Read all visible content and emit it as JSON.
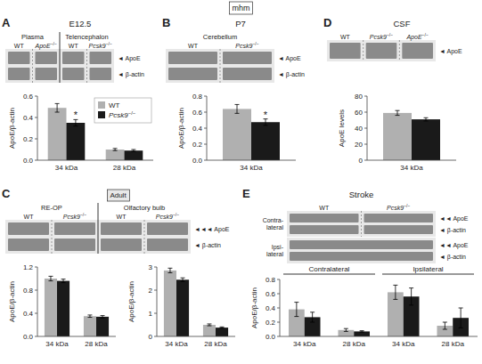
{
  "title": "mhm",
  "chart_data": [
    {
      "type": "bar",
      "panel": "A",
      "title": "E12.5",
      "y_label": "ApoE/β-actin",
      "categories": [
        "34 kDa",
        "28 kDa"
      ],
      "series": [
        {
          "name": "WT",
          "color": "#b0b0b0",
          "values": [
            0.49,
            0.1
          ],
          "errors": [
            0.04,
            0.01
          ]
        },
        {
          "name": "Pcsk9−/−",
          "color": "#1a1a1a",
          "values": [
            0.35,
            0.09
          ],
          "errors": [
            0.03,
            0.01
          ],
          "significance": [
            "*",
            null
          ]
        }
      ],
      "ylim": [
        0,
        0.6
      ],
      "yticks": [
        {
          "value": 0,
          "label": "0.0"
        },
        0.2,
        0.4,
        0.6
      ],
      "legend": "upper right",
      "blots": [
        {
          "sections": [
            {
              "title": "Plasma",
              "groups": [
                "WT",
                "ApoE−/−"
              ]
            },
            {
              "title": "Telencephalon",
              "groups": [
                "WT",
                "Pcsk9−/−"
              ]
            }
          ],
          "bands": [
            "◄ ApoE",
            "◄ β-actin"
          ]
        }
      ]
    },
    {
      "type": "bar",
      "panel": "B",
      "title": "P7",
      "y_label": "ApoE/β-actin",
      "categories": [
        "34 kDa"
      ],
      "series": [
        {
          "color": "#b0b0b0",
          "values": [
            0.64
          ],
          "errors": [
            0.055
          ]
        },
        {
          "color": "#1a1a1a",
          "values": [
            0.475
          ],
          "errors": [
            0.04
          ],
          "significance": [
            "*"
          ]
        }
      ],
      "ylim": [
        0,
        0.8
      ],
      "yticks": [
        {
          "value": 0,
          "label": "0.0"
        },
        0.2,
        0.4,
        0.6,
        0.8
      ],
      "blots": [
        {
          "sections": [
            {
              "title": "Cerebellum",
              "groups": [
                "WT",
                "Pcsk9−/−"
              ]
            }
          ],
          "bands": [
            "◄ ApoE",
            "◄ β-actin"
          ]
        }
      ]
    },
    {
      "type": "bar",
      "panel": "C",
      "subtitle": "Adult",
      "y_label": "ApoE/β-actin",
      "categories": [
        "34 kDa",
        "28 kDa"
      ],
      "series": [
        {
          "color": "#b0b0b0",
          "values": [
            1.0,
            0.35
          ],
          "errors": [
            0.04,
            0.02
          ]
        },
        {
          "color": "#1a1a1a",
          "values": [
            0.96,
            0.34
          ],
          "errors": [
            0.03,
            0.02
          ]
        }
      ],
      "ylim": [
        0,
        1.2
      ],
      "yticks": [
        {
          "value": 0,
          "label": "0.0"
        },
        0.4,
        0.8,
        1.2
      ],
      "blots": [
        {
          "sections": [
            {
              "title": "RE-OP",
              "groups": [
                "WT",
                "Pcsk9−/−"
              ]
            },
            {
              "title": "Olfactory bulb",
              "groups": [
                "WT",
                "Pcsk9−/−"
              ]
            }
          ],
          "bands": [
            "◄◄◄ ApoE",
            "◄ β-actin"
          ]
        }
      ]
    },
    {
      "type": "bar",
      "y_label": "ApoE/β-actin",
      "categories": [
        "34 kDa",
        "28 kDa"
      ],
      "series": [
        {
          "color": "#b0b0b0",
          "values": [
            2.85,
            0.5
          ],
          "errors": [
            0.1,
            0.04
          ]
        },
        {
          "color": "#1a1a1a",
          "values": [
            2.45,
            0.38
          ],
          "errors": [
            0.08,
            0.03
          ]
        }
      ],
      "ylim": [
        0,
        3
      ],
      "yticks": [
        0,
        1,
        2,
        3
      ]
    },
    {
      "type": "bar",
      "panel": "D",
      "title": "CSF",
      "y_label": "ApoE levels",
      "categories": [
        "34 kDa"
      ],
      "series": [
        {
          "color": "#b0b0b0",
          "values": [
            59
          ],
          "errors": [
            3
          ]
        },
        {
          "color": "#1a1a1a",
          "values": [
            51
          ],
          "errors": [
            2
          ]
        }
      ],
      "ylim": [
        0,
        80
      ],
      "yticks": [
        0,
        20,
        40,
        60,
        80
      ],
      "blots": [
        {
          "sections": [
            {
              "groups": [
                "WT",
                "Pcsk9−/−",
                "ApoE−/−"
              ]
            }
          ],
          "bands": [
            "◄ ApoE"
          ]
        }
      ]
    },
    {
      "type": "bar",
      "panel": "E",
      "title": "Stroke",
      "y_label": "ApoE/β-actin",
      "categories": [
        "34 kDa",
        "28 kDa",
        "34 kDa",
        "28 kDa"
      ],
      "category_groups": [
        "Contralateral",
        "Contralateral",
        "Ipsilateral",
        "Ipsilateral"
      ],
      "series": [
        {
          "color": "#b0b0b0",
          "values": [
            0.38,
            0.09,
            0.62,
            0.15
          ],
          "errors": [
            0.1,
            0.02,
            0.1,
            0.05
          ]
        },
        {
          "color": "#1a1a1a",
          "values": [
            0.27,
            0.07,
            0.56,
            0.26
          ],
          "errors": [
            0.07,
            0.01,
            0.12,
            0.14
          ]
        }
      ],
      "ylim": [
        0,
        0.8
      ],
      "yticks": [
        {
          "value": 0,
          "label": "0.0"
        },
        0.2,
        0.4,
        0.6,
        0.8
      ],
      "blots": [
        {
          "row_label": "Contra-\nlateral",
          "sections": [
            {
              "groups": [
                "WT",
                "Pcsk9−/−"
              ]
            }
          ],
          "bands": [
            "◄◄ ApoE",
            "◄ β-actin"
          ]
        },
        {
          "row_label": "Ipsi-\nlateral",
          "bands": [
            "◄◄ ApoE",
            "◄ β-actin"
          ]
        }
      ]
    }
  ]
}
